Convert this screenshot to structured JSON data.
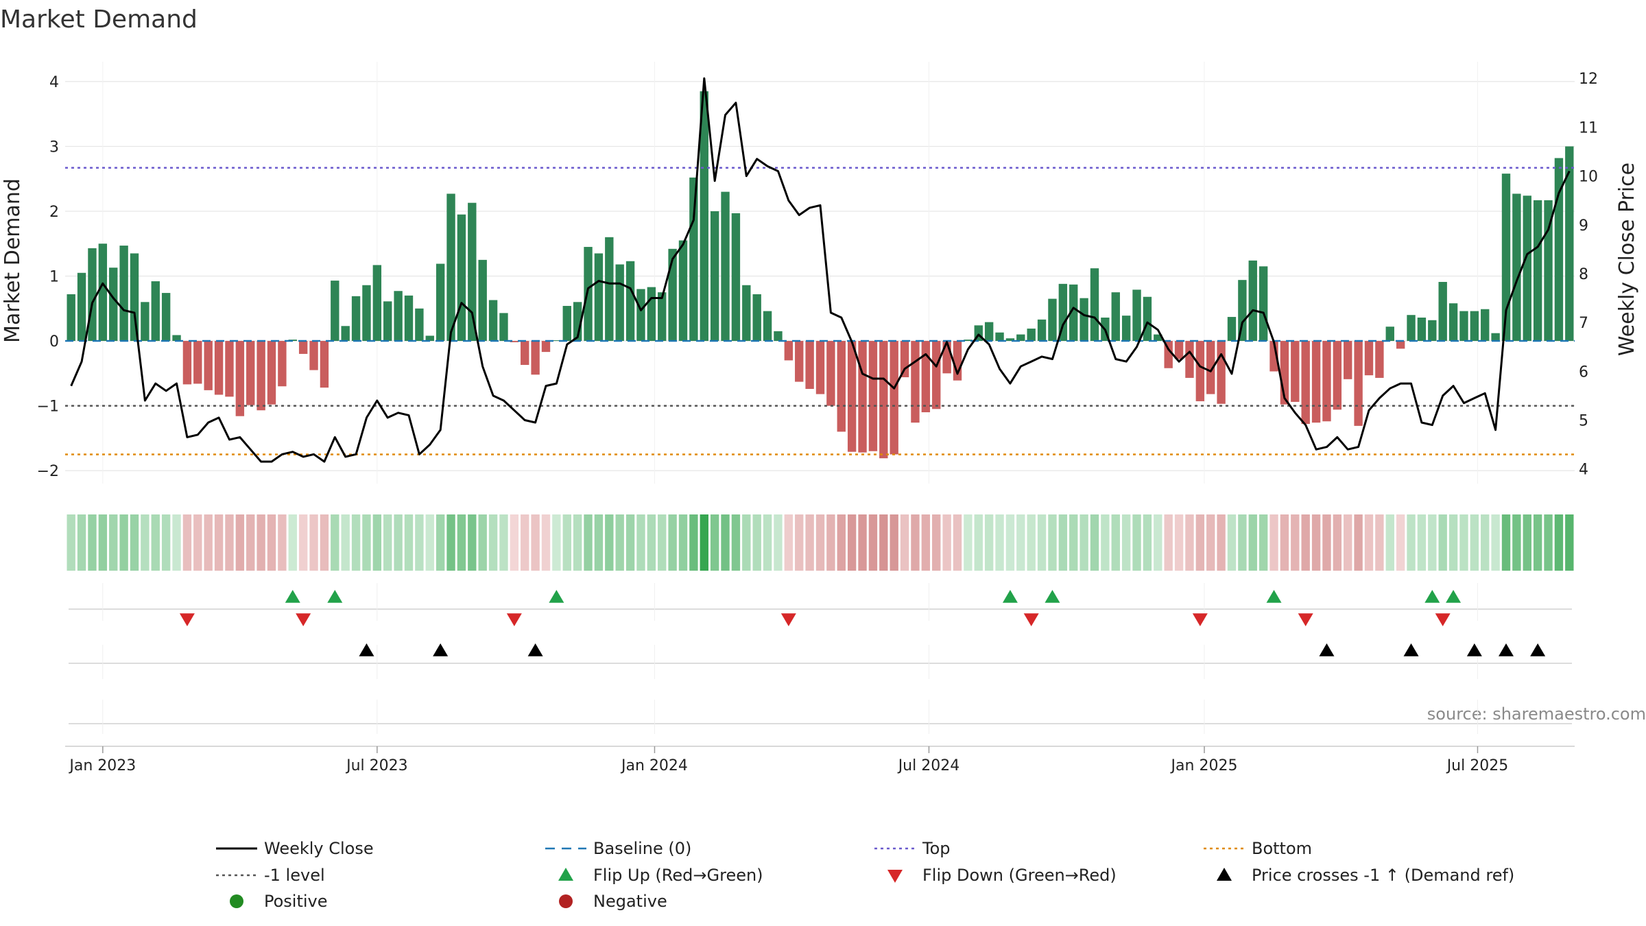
{
  "chart_data": {
    "type": "bar",
    "title": "Market Demand",
    "ylabel": "Market Demand",
    "ylabel_right": "Weekly Close Price",
    "ylim": [
      -2.2,
      4.2
    ],
    "ylim_right": [
      3.7,
      12.2
    ],
    "yticks": [
      4,
      3,
      2,
      1,
      0,
      -1,
      -2
    ],
    "yticks_labels": [
      "4",
      "3",
      "2",
      "1",
      "0",
      "−1",
      "−2"
    ],
    "yticks_right": [
      12,
      11,
      10,
      9,
      8,
      7,
      6,
      5,
      4
    ],
    "x_start_week_offset": -3,
    "x_ticks": [
      {
        "label": "Jan 2023",
        "week": 0
      },
      {
        "label": "Jul 2023",
        "week": 26
      },
      {
        "label": "Jan 2024",
        "week": 52.3
      },
      {
        "label": "Jul 2024",
        "week": 78.3
      },
      {
        "label": "Jan 2025",
        "week": 104.4
      },
      {
        "label": "Jul 2025",
        "week": 130.3
      }
    ],
    "reference_lines": {
      "top": 2.67,
      "minus_one": -1.0,
      "bottom": -1.75,
      "baseline": 0
    },
    "demand": [
      0.72,
      1.05,
      1.43,
      1.5,
      1.13,
      1.47,
      1.35,
      0.6,
      0.92,
      0.74,
      0.09,
      -0.67,
      -0.66,
      -0.76,
      -0.83,
      -0.86,
      -1.16,
      -0.99,
      -1.07,
      -0.98,
      -0.7,
      0.02,
      -0.2,
      -0.45,
      -0.72,
      0.93,
      0.23,
      0.69,
      0.86,
      1.17,
      0.61,
      0.77,
      0.7,
      0.5,
      0.08,
      1.19,
      2.27,
      1.95,
      2.13,
      1.25,
      0.63,
      0.43,
      -0.02,
      -0.37,
      -0.52,
      -0.17,
      0.01,
      0.54,
      0.6,
      1.45,
      1.35,
      1.6,
      1.18,
      1.23,
      0.8,
      0.83,
      0.75,
      1.42,
      1.55,
      2.52,
      3.85,
      2.0,
      2.3,
      1.97,
      0.86,
      0.72,
      0.46,
      0.15,
      -0.3,
      -0.63,
      -0.74,
      -0.82,
      -1.0,
      -1.4,
      -1.71,
      -1.72,
      -1.7,
      -1.81,
      -1.75,
      -0.56,
      -1.26,
      -1.1,
      -1.05,
      -0.5,
      -0.61,
      0.02,
      0.24,
      0.29,
      0.13,
      0.04,
      0.1,
      0.19,
      0.33,
      0.65,
      0.88,
      0.87,
      0.66,
      1.12,
      0.36,
      0.75,
      0.39,
      0.79,
      0.68,
      0.1,
      -0.42,
      -0.28,
      -0.57,
      -0.93,
      -0.82,
      -0.97,
      0.37,
      0.94,
      1.24,
      1.15,
      -0.47,
      -0.98,
      -0.94,
      -1.28,
      -1.26,
      -1.24,
      -1.06,
      -0.59,
      -1.31,
      -0.53,
      -0.57,
      0.22,
      -0.12,
      0.4,
      0.36,
      0.32,
      0.91,
      0.58,
      0.46,
      0.46,
      0.49,
      0.12,
      2.58,
      2.27,
      2.24,
      2.17,
      2.17,
      2.82,
      3.0
    ],
    "weekly_close": [
      5.7,
      6.2,
      7.4,
      7.8,
      7.5,
      7.25,
      7.2,
      5.4,
      5.75,
      5.6,
      5.75,
      4.65,
      4.7,
      4.95,
      5.05,
      4.6,
      4.65,
      4.4,
      4.15,
      4.15,
      4.3,
      4.35,
      4.25,
      4.3,
      4.15,
      4.65,
      4.25,
      4.3,
      5.05,
      5.4,
      5.05,
      5.15,
      5.1,
      4.3,
      4.5,
      4.8,
      6.8,
      7.4,
      7.2,
      6.1,
      5.5,
      5.4,
      5.2,
      5.0,
      4.95,
      5.7,
      5.75,
      6.55,
      6.7,
      7.7,
      7.85,
      7.8,
      7.8,
      7.7,
      7.25,
      7.5,
      7.5,
      8.3,
      8.6,
      9.1,
      12.0,
      9.9,
      11.25,
      11.5,
      10.0,
      10.35,
      10.2,
      10.1,
      9.5,
      9.2,
      9.35,
      9.4,
      7.2,
      7.1,
      6.6,
      5.95,
      5.85,
      5.85,
      5.65,
      6.05,
      6.2,
      6.35,
      6.1,
      6.6,
      5.95,
      6.45,
      6.75,
      6.55,
      6.05,
      5.75,
      6.1,
      6.2,
      6.3,
      6.25,
      6.95,
      7.3,
      7.15,
      7.1,
      6.85,
      6.25,
      6.2,
      6.5,
      7.0,
      6.85,
      6.45,
      6.2,
      6.4,
      6.1,
      6.0,
      6.35,
      5.95,
      7.0,
      7.25,
      7.2,
      6.6,
      5.45,
      5.15,
      4.9,
      4.4,
      4.45,
      4.65,
      4.4,
      4.45,
      5.2,
      5.45,
      5.65,
      5.75,
      5.75,
      4.95,
      4.9,
      5.5,
      5.7,
      5.35,
      5.45,
      5.55,
      4.8,
      7.25,
      7.85,
      8.4,
      8.55,
      8.9,
      9.65,
      10.1
    ],
    "flip_up_weeks": [
      18,
      22,
      43,
      86,
      90,
      111,
      126,
      128
    ],
    "flip_down_weeks": [
      8,
      19,
      39,
      65,
      88,
      104,
      114,
      127
    ],
    "price_cross_weeks": [
      25,
      32,
      41,
      116,
      124,
      130,
      133,
      136
    ],
    "legend": [
      {
        "key": "weekly_close",
        "label": "Weekly Close",
        "kind": "line",
        "color": "#000000"
      },
      {
        "key": "baseline",
        "label": "Baseline (0)",
        "kind": "dash",
        "color": "#1f77b4"
      },
      {
        "key": "top",
        "label": "Top",
        "kind": "dot",
        "color": "#6a5acd"
      },
      {
        "key": "bottom",
        "label": "Bottom",
        "kind": "dot",
        "color": "#e08a00"
      },
      {
        "key": "minus_one",
        "label": "-1 level",
        "kind": "dot",
        "color": "#555555"
      },
      {
        "key": "flip_up",
        "label": "Flip Up (Red→Green)",
        "kind": "tri_up",
        "color": "#22a24a"
      },
      {
        "key": "flip_down",
        "label": "Flip Down (Green→Red)",
        "kind": "tri_down",
        "color": "#d62728"
      },
      {
        "key": "price_cross",
        "label": "Price crosses -1 ↑ (Demand ref)",
        "kind": "tri_up",
        "color": "#000000"
      },
      {
        "key": "positive",
        "label": "Positive",
        "kind": "circle",
        "color": "#228b22"
      },
      {
        "key": "negative",
        "label": "Negative",
        "kind": "circle",
        "color": "#b22222"
      }
    ],
    "source": "source: sharemaestro.com"
  },
  "colors": {
    "positive_bar": "#2e8555",
    "negative_bar": "#c95d5d",
    "price_line": "#000000",
    "grid": "#e6e6e6"
  }
}
